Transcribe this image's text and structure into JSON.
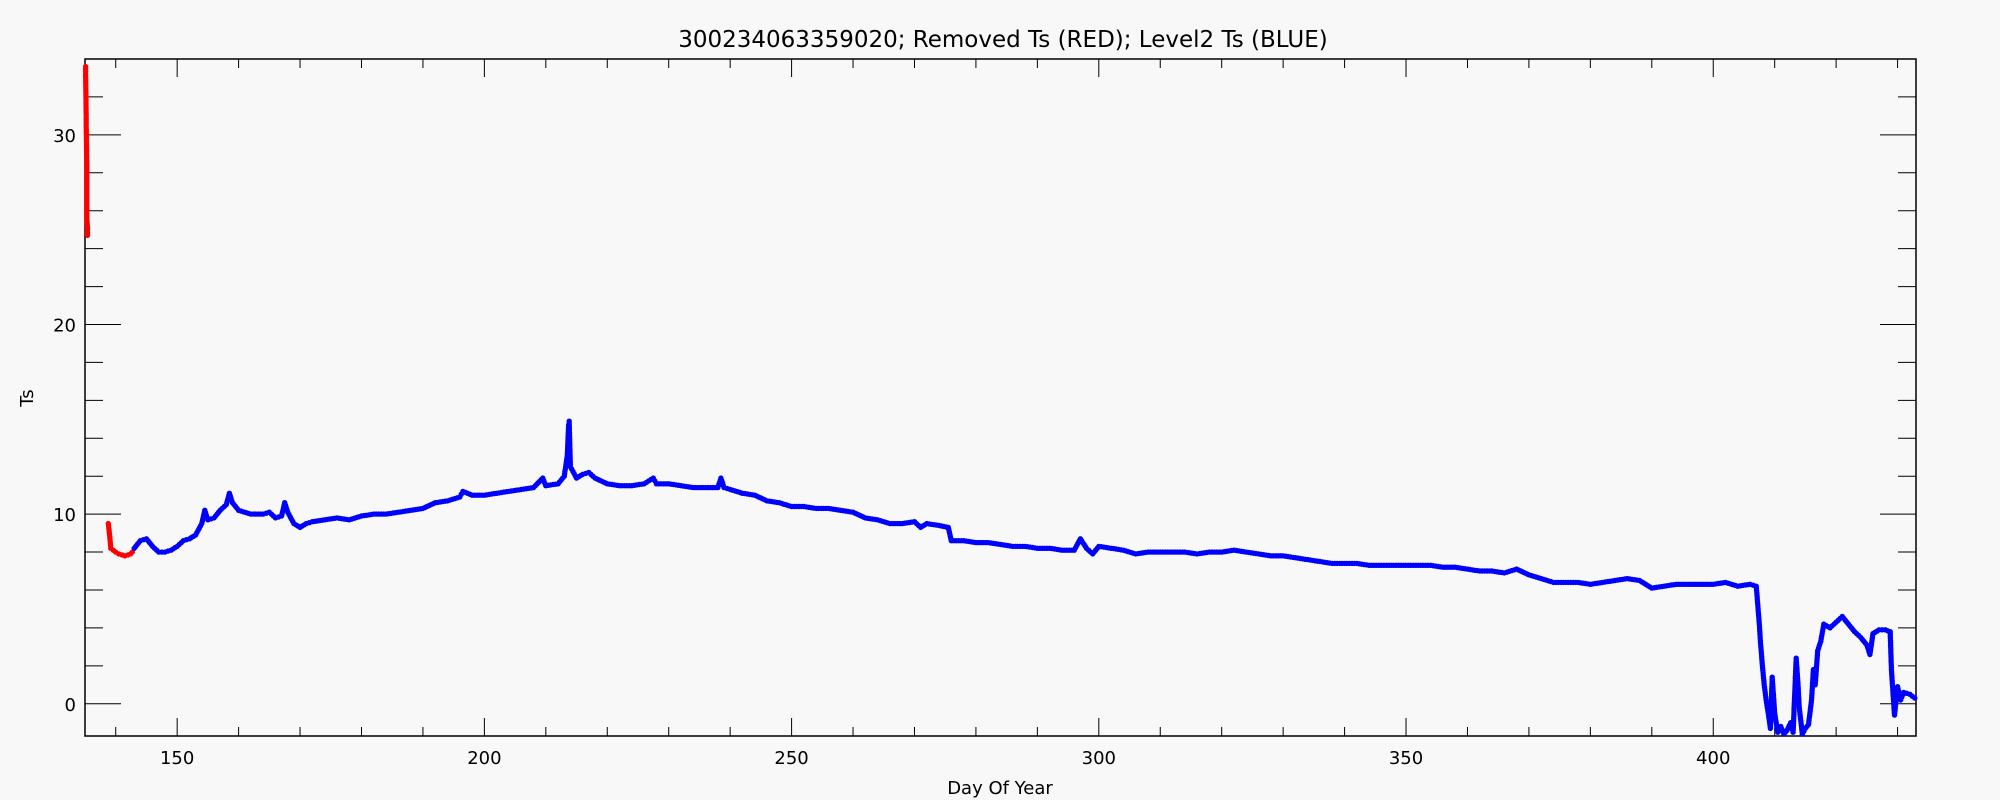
{
  "chart_data": {
    "type": "scatter",
    "title": "300234063359020; Removed Ts (RED); Level2 Ts (BLUE)",
    "xlabel": "Day Of Year",
    "ylabel": "Ts",
    "xlim": [
      135,
      433
    ],
    "ylim": [
      -1.7,
      34
    ],
    "xticks": [
      150,
      200,
      250,
      300,
      350,
      400
    ],
    "yticks": [
      0,
      10,
      20,
      30
    ],
    "x_minor_step": 10,
    "y_minor_step": 2,
    "grid": false,
    "series": [
      {
        "color": "#ff0000",
        "points": [
          [
            135.1,
            33.6
          ],
          [
            135.1,
            33.2
          ],
          [
            135.2,
            30.8
          ],
          [
            135.2,
            30.4
          ],
          [
            135.3,
            28.3
          ],
          [
            135.3,
            27.8
          ],
          [
            135.3,
            25.6
          ],
          [
            135.4,
            25.1
          ],
          [
            135.4,
            24.7
          ],
          [
            138.8,
            9.5
          ],
          [
            139.0,
            8.9
          ],
          [
            139.2,
            8.2
          ],
          [
            139.6,
            8.1
          ],
          [
            140.0,
            8.0
          ],
          [
            140.5,
            7.9
          ],
          [
            141.0,
            7.85
          ],
          [
            141.5,
            7.8
          ],
          [
            142.0,
            7.85
          ],
          [
            142.4,
            7.9
          ],
          [
            142.7,
            8.0
          ]
        ]
      },
      {
        "color": "#0000ff",
        "points": [
          [
            143,
            8.2
          ],
          [
            144,
            8.6
          ],
          [
            145,
            8.7
          ],
          [
            146,
            8.3
          ],
          [
            147,
            8.0
          ],
          [
            148,
            8.0
          ],
          [
            149,
            8.1
          ],
          [
            150,
            8.3
          ],
          [
            151,
            8.6
          ],
          [
            152,
            8.7
          ],
          [
            153,
            8.9
          ],
          [
            154,
            9.5
          ],
          [
            154.5,
            10.2
          ],
          [
            155,
            9.7
          ],
          [
            156,
            9.8
          ],
          [
            157,
            10.2
          ],
          [
            158,
            10.5
          ],
          [
            158.5,
            11.1
          ],
          [
            159,
            10.6
          ],
          [
            160,
            10.2
          ],
          [
            162,
            10.0
          ],
          [
            164,
            10.0
          ],
          [
            165,
            10.1
          ],
          [
            166,
            9.8
          ],
          [
            167,
            9.9
          ],
          [
            167.5,
            10.6
          ],
          [
            168,
            10.1
          ],
          [
            169,
            9.5
          ],
          [
            170,
            9.3
          ],
          [
            171,
            9.5
          ],
          [
            172,
            9.6
          ],
          [
            174,
            9.7
          ],
          [
            176,
            9.8
          ],
          [
            178,
            9.7
          ],
          [
            180,
            9.9
          ],
          [
            182,
            10.0
          ],
          [
            184,
            10.0
          ],
          [
            186,
            10.1
          ],
          [
            188,
            10.2
          ],
          [
            190,
            10.3
          ],
          [
            192,
            10.6
          ],
          [
            194,
            10.7
          ],
          [
            196,
            10.9
          ],
          [
            196.5,
            11.2
          ],
          [
            198,
            11.0
          ],
          [
            200,
            11.0
          ],
          [
            202,
            11.1
          ],
          [
            204,
            11.2
          ],
          [
            206,
            11.3
          ],
          [
            208,
            11.4
          ],
          [
            209.5,
            11.9
          ],
          [
            210,
            11.5
          ],
          [
            212,
            11.6
          ],
          [
            213,
            12.0
          ],
          [
            213.5,
            13.1
          ],
          [
            213.7,
            14.7
          ],
          [
            213.8,
            14.9
          ],
          [
            214,
            12.5
          ],
          [
            215,
            11.9
          ],
          [
            216,
            12.1
          ],
          [
            217,
            12.2
          ],
          [
            218,
            11.9
          ],
          [
            220,
            11.6
          ],
          [
            222,
            11.5
          ],
          [
            224,
            11.5
          ],
          [
            226,
            11.6
          ],
          [
            227.5,
            11.9
          ],
          [
            228,
            11.6
          ],
          [
            230,
            11.6
          ],
          [
            232,
            11.5
          ],
          [
            234,
            11.4
          ],
          [
            236,
            11.4
          ],
          [
            238,
            11.4
          ],
          [
            238.5,
            11.9
          ],
          [
            239,
            11.4
          ],
          [
            240,
            11.3
          ],
          [
            242,
            11.1
          ],
          [
            244,
            11.0
          ],
          [
            246,
            10.7
          ],
          [
            248,
            10.6
          ],
          [
            250,
            10.4
          ],
          [
            252,
            10.4
          ],
          [
            254,
            10.3
          ],
          [
            256,
            10.3
          ],
          [
            258,
            10.2
          ],
          [
            260,
            10.1
          ],
          [
            262,
            9.8
          ],
          [
            264,
            9.7
          ],
          [
            266,
            9.5
          ],
          [
            268,
            9.5
          ],
          [
            270,
            9.6
          ],
          [
            271,
            9.3
          ],
          [
            272,
            9.5
          ],
          [
            274,
            9.4
          ],
          [
            275.5,
            9.3
          ],
          [
            276,
            8.6
          ],
          [
            278,
            8.6
          ],
          [
            280,
            8.5
          ],
          [
            282,
            8.5
          ],
          [
            284,
            8.4
          ],
          [
            286,
            8.3
          ],
          [
            288,
            8.3
          ],
          [
            290,
            8.2
          ],
          [
            292,
            8.2
          ],
          [
            294,
            8.1
          ],
          [
            296,
            8.1
          ],
          [
            297,
            8.7
          ],
          [
            298,
            8.2
          ],
          [
            299,
            7.9
          ],
          [
            300,
            8.3
          ],
          [
            302,
            8.2
          ],
          [
            304,
            8.1
          ],
          [
            306,
            7.9
          ],
          [
            308,
            8.0
          ],
          [
            310,
            8.0
          ],
          [
            312,
            8.0
          ],
          [
            314,
            8.0
          ],
          [
            316,
            7.9
          ],
          [
            318,
            8.0
          ],
          [
            320,
            8.0
          ],
          [
            322,
            8.1
          ],
          [
            324,
            8.0
          ],
          [
            326,
            7.9
          ],
          [
            328,
            7.8
          ],
          [
            330,
            7.8
          ],
          [
            332,
            7.7
          ],
          [
            334,
            7.6
          ],
          [
            336,
            7.5
          ],
          [
            338,
            7.4
          ],
          [
            340,
            7.4
          ],
          [
            342,
            7.4
          ],
          [
            344,
            7.3
          ],
          [
            346,
            7.3
          ],
          [
            348,
            7.3
          ],
          [
            350,
            7.3
          ],
          [
            352,
            7.3
          ],
          [
            354,
            7.3
          ],
          [
            356,
            7.2
          ],
          [
            358,
            7.2
          ],
          [
            360,
            7.1
          ],
          [
            362,
            7.0
          ],
          [
            364,
            7.0
          ],
          [
            366,
            6.9
          ],
          [
            368,
            7.1
          ],
          [
            370,
            6.8
          ],
          [
            372,
            6.6
          ],
          [
            374,
            6.4
          ],
          [
            376,
            6.4
          ],
          [
            378,
            6.4
          ],
          [
            380,
            6.3
          ],
          [
            382,
            6.4
          ],
          [
            384,
            6.5
          ],
          [
            386,
            6.6
          ],
          [
            388,
            6.5
          ],
          [
            390,
            6.1
          ],
          [
            392,
            6.2
          ],
          [
            394,
            6.3
          ],
          [
            396,
            6.3
          ],
          [
            398,
            6.3
          ],
          [
            400,
            6.3
          ],
          [
            402,
            6.4
          ],
          [
            404,
            6.2
          ],
          [
            406,
            6.3
          ],
          [
            407,
            6.2
          ],
          [
            407.5,
            4.2
          ],
          [
            407.7,
            3.2
          ],
          [
            408,
            2.0
          ],
          [
            408.3,
            1.0
          ],
          [
            408.6,
            0.2
          ],
          [
            409,
            -0.6
          ],
          [
            409.3,
            -1.3
          ],
          [
            409.6,
            1.4
          ],
          [
            410,
            -0.5
          ],
          [
            410.5,
            -1.5
          ],
          [
            411,
            -1.2
          ],
          [
            411.5,
            -1.6
          ],
          [
            412,
            -1.4
          ],
          [
            412.6,
            -1.0
          ],
          [
            413,
            -1.5
          ],
          [
            413.5,
            2.4
          ],
          [
            413.8,
            1.0
          ],
          [
            414,
            -0.2
          ],
          [
            414.5,
            -1.6
          ],
          [
            415,
            -1.3
          ],
          [
            415.5,
            -1.1
          ],
          [
            416,
            0.2
          ],
          [
            416.3,
            1.8
          ],
          [
            416.6,
            1.0
          ],
          [
            417,
            2.8
          ],
          [
            417.5,
            3.3
          ],
          [
            418,
            4.2
          ],
          [
            419,
            4.0
          ],
          [
            420,
            4.3
          ],
          [
            421,
            4.6
          ],
          [
            422,
            4.2
          ],
          [
            423,
            3.8
          ],
          [
            424,
            3.5
          ],
          [
            425,
            3.1
          ],
          [
            425.5,
            2.6
          ],
          [
            426,
            3.7
          ],
          [
            427,
            3.9
          ],
          [
            428,
            3.9
          ],
          [
            428.8,
            3.8
          ],
          [
            429,
            1.8
          ],
          [
            429.5,
            -0.6
          ],
          [
            430,
            0.9
          ],
          [
            430.5,
            0.2
          ],
          [
            431,
            0.6
          ],
          [
            432,
            0.5
          ],
          [
            432.8,
            0.3
          ]
        ]
      }
    ]
  }
}
